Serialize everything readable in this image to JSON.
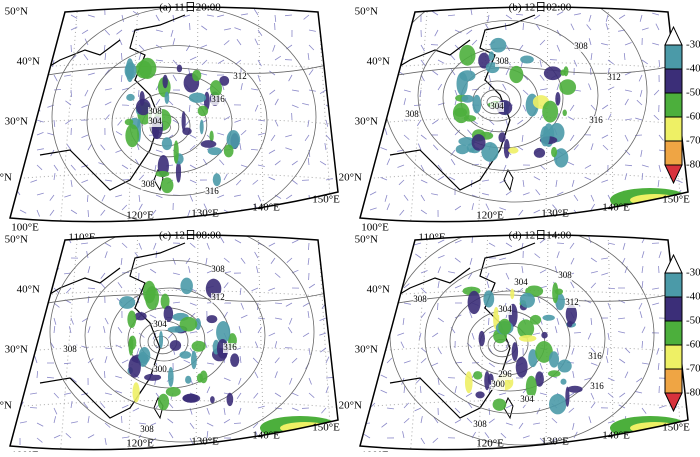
{
  "panels": [
    {
      "title": "(a) 11日20:00",
      "contour_labels": [
        "308",
        "304",
        "312",
        "316",
        "308",
        "316"
      ]
    },
    {
      "title": "(b) 12日02:00",
      "contour_labels": [
        "308",
        "308",
        "312",
        "308",
        "304",
        "316"
      ]
    },
    {
      "title": "(c) 12日08:00",
      "contour_labels": [
        "308",
        "312",
        "304",
        "308",
        "316",
        "300",
        "308"
      ]
    },
    {
      "title": "(d) 12日14:00",
      "contour_labels": [
        "308",
        "304",
        "312",
        "308",
        "304",
        "316",
        "316",
        "296",
        "300",
        "304",
        "308"
      ]
    }
  ],
  "axes": {
    "lon_labels": [
      "100°E",
      "110°E",
      "120°E",
      "130°E",
      "140°E",
      "150°E"
    ],
    "lat_labels": [
      "50°N",
      "40°N",
      "30°N",
      "20°N"
    ]
  },
  "colorbars": [
    {
      "ticks": [
        -30,
        -40,
        -50,
        -60,
        -70,
        -80
      ],
      "colors": [
        "#ffffff",
        "#4b9aa8",
        "#3b2e78",
        "#4caf3c",
        "#eef065",
        "#efa544",
        "#d8323c"
      ]
    },
    {
      "ticks": [
        -30,
        -40,
        -50,
        -60,
        -70,
        -80
      ],
      "colors": [
        "#ffffff",
        "#4b9aa8",
        "#3b2e78",
        "#4caf3c",
        "#eef065",
        "#efa544",
        "#d8323c"
      ]
    }
  ]
}
